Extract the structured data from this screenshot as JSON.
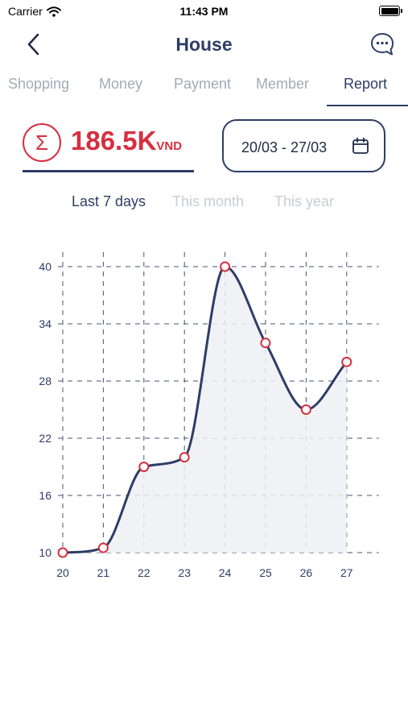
{
  "status_bar": {
    "carrier": "Carrier",
    "time": "11:43 PM"
  },
  "header": {
    "title": "House"
  },
  "tabs": [
    {
      "label": "Shopping",
      "active": false
    },
    {
      "label": "Money",
      "active": false
    },
    {
      "label": "Payment",
      "active": false
    },
    {
      "label": "Member",
      "active": false
    },
    {
      "label": "Report",
      "active": true
    }
  ],
  "summary": {
    "amount": "186.5K",
    "unit": "VND",
    "date_range": "20/03 - 27/03"
  },
  "periods": [
    {
      "label": "Last 7 days",
      "active": true
    },
    {
      "label": "This month",
      "active": false
    },
    {
      "label": "This year",
      "active": false
    }
  ],
  "colors": {
    "accent": "#2e3d66",
    "danger": "#d63040",
    "inactive": "#a4a9b6",
    "muted": "#c9ccd4"
  },
  "icons": {
    "back": "chevron-left-icon",
    "chat": "chat-bubble-icon",
    "total": "sigma-icon",
    "calendar": "calendar-icon"
  },
  "chart_data": {
    "type": "line",
    "smooth": true,
    "area_fill": true,
    "grid": true,
    "x": [
      "20",
      "21",
      "22",
      "23",
      "24",
      "25",
      "26",
      "27"
    ],
    "series": [
      {
        "values": [
          10,
          10.5,
          19,
          20,
          40,
          32,
          25,
          30
        ]
      }
    ],
    "y_ticks": [
      "10",
      "16",
      "22",
      "28",
      "34",
      "40"
    ],
    "ylim": [
      10,
      40
    ],
    "colors": {
      "line": "#2e3d66",
      "marker": "#d63040",
      "fill": "#eef0f5",
      "grid": "#4a5270"
    }
  }
}
